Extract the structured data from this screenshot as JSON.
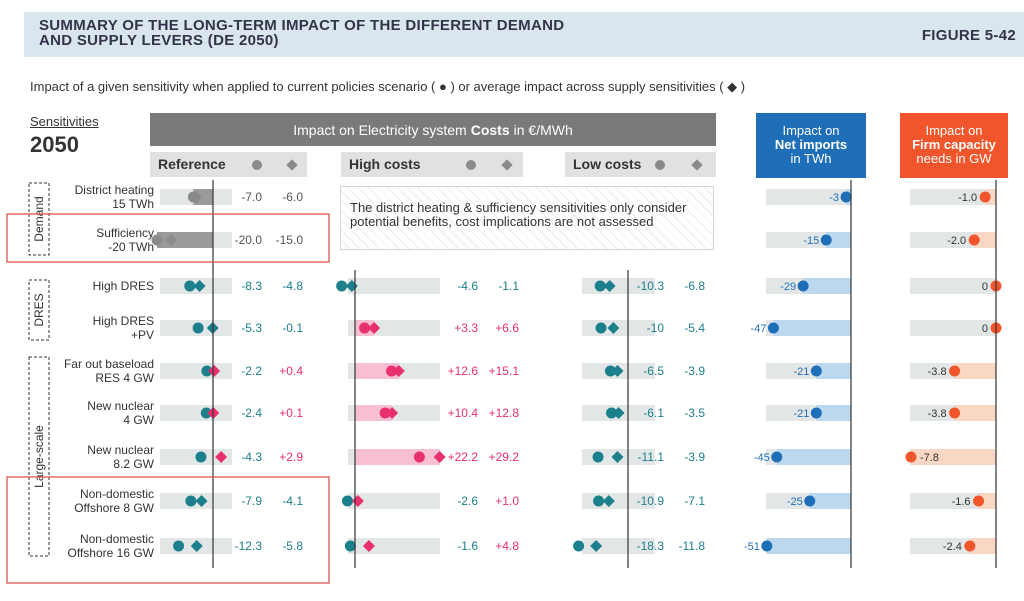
{
  "title": "SUMMARY OF THE LONG-TERM IMPACT OF THE DIFFERENT DEMAND\nAND SUPPLY LEVERS (DE 2050)",
  "figure_number": "FIGURE 5-42",
  "subtitle": "Impact of a given sensitivity when applied to current policies scenario ( ● ) or average impact across supply sensitivities ( ◆ )",
  "sensitivities_label": "Sensitivities",
  "year": "2050",
  "costs_header": {
    "pre": "Impact on Electricity system",
    "bold": "Costs",
    "post": "in €/MWh"
  },
  "subheaders": {
    "reference": "Reference",
    "high": "High costs",
    "low": "Low costs"
  },
  "net_header": {
    "line1": "Impact on",
    "bold": "Net imports",
    "line3": "in TWh"
  },
  "firm_header": {
    "line1": "Impact on",
    "bold": "Firm capacity",
    "line3": "needs in GW"
  },
  "note": "The district heating & sufficiency sensitivities only consider potential benefits, cost implications are not assessed",
  "groups": [
    "Demand",
    "DRES",
    "Large-scale"
  ],
  "colors": {
    "teal": "#1c7f8c",
    "pink": "#e8306c",
    "grey": "#8a8a8a",
    "blue": "#1e6fb8",
    "orange": "#f0552b",
    "axis": "#333333"
  },
  "chart_data": {
    "type": "dot-bar",
    "legend": {
      "dot": "Impact applied to current policies scenario",
      "diamond": "Average impact across supply sensitivities"
    },
    "rows": [
      {
        "label": [
          "District heating",
          "15 TWh"
        ],
        "group": "Demand",
        "ref": [
          -7.0,
          -6.0
        ],
        "ref_txt": [
          "-7.0",
          "-6.0"
        ],
        "high": null,
        "low": null,
        "net": -3,
        "net_txt": "-3",
        "firm": -1.0,
        "firm_txt": "-1.0"
      },
      {
        "label": [
          "Sufficiency",
          "-20 TWh"
        ],
        "group": "Demand",
        "ref": [
          -20.0,
          -15.0
        ],
        "ref_txt": [
          "-20.0",
          "-15.0"
        ],
        "high": null,
        "low": null,
        "net": -15,
        "net_txt": "-15",
        "firm": -2.0,
        "firm_txt": "-2.0"
      },
      {
        "label": [
          "High DRES"
        ],
        "group": "DRES",
        "ref": [
          -8.3,
          -4.8
        ],
        "ref_txt": [
          "-8.3",
          "-4.8"
        ],
        "high": [
          -4.6,
          -1.1
        ],
        "high_txt": [
          "-4.6",
          "-1.1"
        ],
        "low": [
          -10.3,
          -6.8
        ],
        "low_txt": [
          "-10.3",
          "-6.8"
        ],
        "net": -29,
        "net_txt": "-29",
        "firm": 0,
        "firm_txt": "0"
      },
      {
        "label": [
          "High DRES",
          "+PV"
        ],
        "group": "DRES",
        "ref": [
          -5.3,
          -0.1
        ],
        "ref_txt": [
          "-5.3",
          "-0.1"
        ],
        "high": [
          3.3,
          6.6
        ],
        "high_txt": [
          "+3.3",
          "+6.6"
        ],
        "low": [
          -10,
          -5.4
        ],
        "low_txt": [
          "-10",
          "-5.4"
        ],
        "net": -47,
        "net_txt": "-47",
        "firm": 0,
        "firm_txt": "0"
      },
      {
        "label": [
          "Far out baseload",
          "RES 4 GW"
        ],
        "group": "Large-scale",
        "ref": [
          -2.2,
          0.4
        ],
        "ref_txt": [
          "-2.2",
          "+0.4"
        ],
        "high": [
          12.6,
          15.1
        ],
        "high_txt": [
          "+12.6",
          "+15.1"
        ],
        "low": [
          -6.5,
          -3.9
        ],
        "low_txt": [
          "-6.5",
          "-3.9"
        ],
        "net": -21,
        "net_txt": "-21",
        "firm": -3.8,
        "firm_txt": "-3.8"
      },
      {
        "label": [
          "New nuclear",
          "4 GW"
        ],
        "group": "Large-scale",
        "ref": [
          -2.4,
          0.1
        ],
        "ref_txt": [
          "-2.4",
          "+0.1"
        ],
        "high": [
          10.4,
          12.8
        ],
        "high_txt": [
          "+10.4",
          "+12.8"
        ],
        "low": [
          -6.1,
          -3.5
        ],
        "low_txt": [
          "-6.1",
          "-3.5"
        ],
        "net": -21,
        "net_txt": "-21",
        "firm": -3.8,
        "firm_txt": "-3.8"
      },
      {
        "label": [
          "New nuclear",
          "8.2 GW"
        ],
        "group": "Large-scale",
        "ref": [
          -4.3,
          2.9
        ],
        "ref_txt": [
          "-4.3",
          "+2.9"
        ],
        "high": [
          22.2,
          29.2
        ],
        "high_txt": [
          "+22.2",
          "+29.2"
        ],
        "low": [
          -11.1,
          -3.9
        ],
        "low_txt": [
          "-11.1",
          "-3.9"
        ],
        "net": -45,
        "net_txt": "-45",
        "firm": -7.8,
        "firm_txt": "-7.8"
      },
      {
        "label": [
          "Non-domestic",
          "Offshore 8 GW"
        ],
        "group": "Large-scale",
        "ref": [
          -7.9,
          -4.1
        ],
        "ref_txt": [
          "-7.9",
          "-4.1"
        ],
        "high": [
          -2.6,
          1.0
        ],
        "high_txt": [
          "-2.6",
          "+1.0"
        ],
        "low": [
          -10.9,
          -7.1
        ],
        "low_txt": [
          "-10.9",
          "-7.1"
        ],
        "net": -25,
        "net_txt": "-25",
        "firm": -1.6,
        "firm_txt": "-1.6"
      },
      {
        "label": [
          "Non-domestic",
          "Offshore 16 GW"
        ],
        "group": "Large-scale",
        "ref": [
          -12.3,
          -5.8
        ],
        "ref_txt": [
          "-12.3",
          "-5.8"
        ],
        "high": [
          -1.6,
          4.8
        ],
        "high_txt": [
          "-1.6",
          "+4.8"
        ],
        "low": [
          -18.3,
          -11.8
        ],
        "low_txt": [
          "-18.3",
          "-11.8"
        ],
        "net": -51,
        "net_txt": "-51",
        "firm": -2.4,
        "firm_txt": "-2.4"
      }
    ],
    "highlighted_rows": [
      "Sufficiency",
      "Non-domestic Offshore 8 GW",
      "Non-domestic Offshore 16 GW"
    ]
  }
}
